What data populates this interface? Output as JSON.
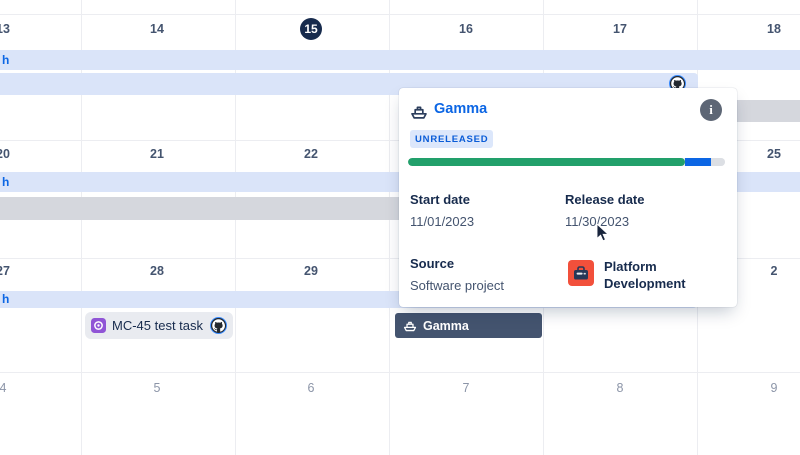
{
  "colors": {
    "accent": "#0C66E4",
    "band_blue": "#DAE4F9",
    "band_gray": "#D5D7DD",
    "chip_dark": "#44546F",
    "chip_gray_bg": "#E9EBF0",
    "today_bg": "#172B4D",
    "task_purple": "#9055D6",
    "proj_orange": "#F2503B",
    "badge_bg": "#DCE7FB",
    "info_gray": "#5D6675",
    "text_dark": "#172B4D",
    "text_mid": "#44546F",
    "date_muted": "#8C95A8",
    "grid_line": "#ECEDF1"
  },
  "calendar": {
    "weeks": [
      {
        "dates": [
          "13",
          "14",
          "15",
          "16",
          "17",
          "18"
        ]
      },
      {
        "dates": [
          "20",
          "21",
          "22",
          "",
          "",
          "25"
        ]
      },
      {
        "dates": [
          "27",
          "28",
          "29",
          "",
          "",
          "2"
        ]
      },
      {
        "dates": [
          "4",
          "5",
          "6",
          "7",
          "8",
          "9"
        ]
      }
    ],
    "today_date": "15",
    "bands": {
      "row1_label": "h",
      "row2_label": "h",
      "row3_label": "h"
    },
    "chips": {
      "task": {
        "label": "MC-45 test task",
        "type_icon": "task-icon",
        "avatar_icon": "github-avatar"
      },
      "release": {
        "label": "Gamma",
        "icon": "ship-icon"
      }
    }
  },
  "popup": {
    "title": "Gamma",
    "title_icon": "ship-icon",
    "status_badge": "UNRELEASED",
    "info_icon_glyph": "i",
    "progress": {
      "segments": [
        {
          "color": "#22A06B",
          "pct": 87.5
        },
        {
          "color": "#0C66E4",
          "pct": 8
        },
        {
          "color": "#DCDFE4",
          "pct": 4.5
        }
      ]
    },
    "fields": {
      "start_date_label": "Start date",
      "start_date_value": "11/01/2023",
      "release_date_label": "Release date",
      "release_date_value": "11/30/2023",
      "source_label": "Source",
      "source_value": "Software project",
      "project_name": "Platform Development",
      "project_icon": "toolbox-icon"
    }
  }
}
